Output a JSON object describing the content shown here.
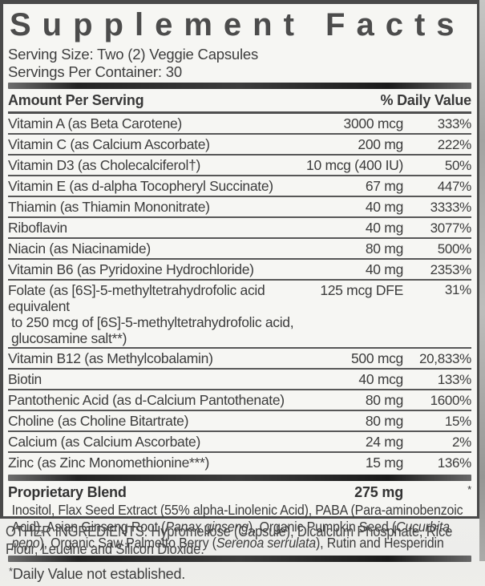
{
  "label": {
    "title": "Supplement Facts",
    "serving_size": "Serving Size: Two (2) Veggie Capsules",
    "servings_per_container": "Servings Per Container: 30"
  },
  "table": {
    "header_left": "Amount Per Serving",
    "header_right": "% Daily Value",
    "rows": [
      {
        "name": "Vitamin A (as Beta Carotene)",
        "amount": "3000 mcg",
        "dv": "333%"
      },
      {
        "name": "Vitamin C (as Calcium Ascorbate)",
        "amount": "200 mg",
        "dv": "222%"
      },
      {
        "name": "Vitamin D3 (as Cholecalciferol†)",
        "amount": "10 mcg (400 IU)",
        "dv": "50%"
      },
      {
        "name": "Vitamin E (as d-alpha Tocopheryl Succinate)",
        "amount": "67 mg",
        "dv": "447%"
      },
      {
        "name": "Thiamin (as Thiamin Mononitrate)",
        "amount": "40 mg",
        "dv": "3333%"
      },
      {
        "name": "Riboflavin",
        "amount": "40 mg",
        "dv": "3077%"
      },
      {
        "name": "Niacin (as Niacinamide)",
        "amount": "80 mg",
        "dv": "500%"
      },
      {
        "name": "Vitamin B6 (as Pyridoxine Hydrochloride)",
        "amount": "40 mg",
        "dv": "2353%"
      },
      {
        "name": "Folate (as [6S]-5-methyltetrahydrofolic acid equivalent",
        "name2": "to 250 mcg of [6S]-5-methyltetrahydrofolic acid, glucosamine salt**)",
        "amount": "125 mcg DFE",
        "dv": "31%"
      },
      {
        "name": "Vitamin B12 (as Methylcobalamin)",
        "amount": "500 mcg",
        "dv": "20,833%"
      },
      {
        "name": "Biotin",
        "amount": "40 mcg",
        "dv": "133%"
      },
      {
        "name": "Pantothenic Acid (as d-Calcium Pantothenate)",
        "amount": "80 mg",
        "dv": "1600%"
      },
      {
        "name": "Choline (as Choline Bitartrate)",
        "amount": "80 mg",
        "dv": "15%"
      },
      {
        "name": "Calcium (as Calcium Ascorbate)",
        "amount": "24 mg",
        "dv": "2%"
      },
      {
        "name": "Zinc (as Zinc Monomethionine***)",
        "amount": "15 mg",
        "dv": "136%"
      }
    ]
  },
  "blend": {
    "name": "Proprietary Blend",
    "amount": "275 mg",
    "dv_marker": "*",
    "description_segments": [
      {
        "text": "Inositol, Flax Seed Extract (55% alpha-Linolenic Acid), PABA (Para-aminobenzoic Acid), Asian Ginseng Root ("
      },
      {
        "text": "Panax ginseng",
        "italic": true
      },
      {
        "text": "), Organic Pumpkin Seed ("
      },
      {
        "text": "Cucurbita pepo",
        "italic": true
      },
      {
        "text": "), Organic Saw Palmetto Berry ("
      },
      {
        "text": "Serenoa serrulata",
        "italic": true
      },
      {
        "text": "), Rutin and Hesperidin"
      }
    ]
  },
  "footnote": {
    "marker": "*",
    "text": "Daily Value not established."
  },
  "other_ingredients": "OTHER INGREDIENTS: Hypromellose (Capsule), Dicalcium Phosphate, Rice Flour, Leucine and Silicon Dioxide."
}
